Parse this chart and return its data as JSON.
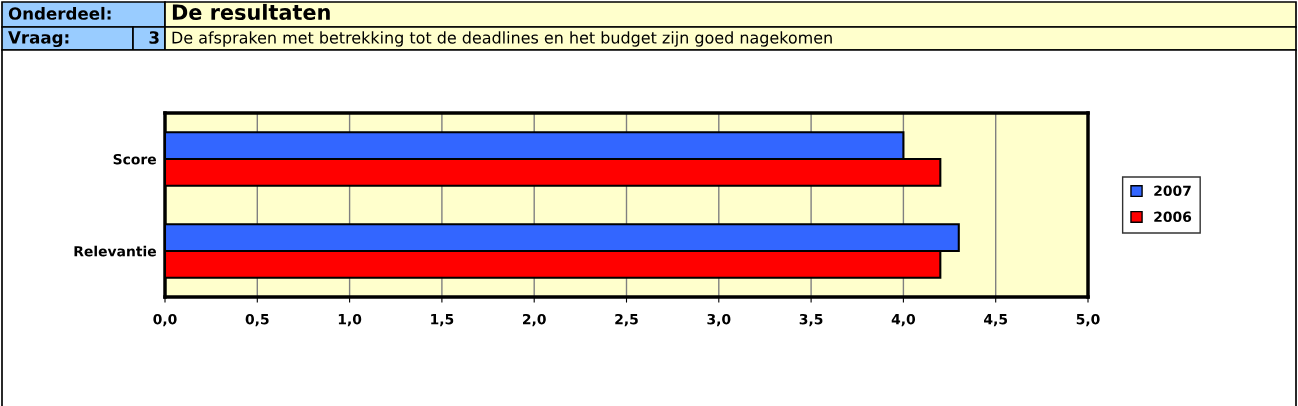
{
  "chart_data": {
    "type": "bar",
    "orientation": "horizontal",
    "title": "De resultaten",
    "subtitle": "De afspraken met betrekking tot de deadlines en het budget zijn goed nagekomen",
    "annotations": [
      "Onderdeel:",
      "Vraag:",
      "3"
    ],
    "categories": [
      "Score",
      "Relevantie"
    ],
    "series": [
      {
        "name": "2007",
        "color": "#3366ff",
        "values": [
          4.0,
          4.3
        ]
      },
      {
        "name": "2006",
        "color": "#ff0000",
        "values": [
          4.2,
          4.2
        ]
      }
    ],
    "xlim": [
      0,
      5
    ],
    "xticks": [
      {
        "value": 0,
        "label": "0,0"
      },
      {
        "value": 0.5,
        "label": "0,5"
      },
      {
        "value": 1,
        "label": "1,0"
      },
      {
        "value": 1.5,
        "label": "1,5"
      },
      {
        "value": 2,
        "label": "2,0"
      },
      {
        "value": 2.5,
        "label": "2,5"
      },
      {
        "value": 3,
        "label": "3,0"
      },
      {
        "value": 3.5,
        "label": "3,5"
      },
      {
        "value": 4,
        "label": "4,0"
      },
      {
        "value": 4.5,
        "label": "4,5"
      },
      {
        "value": 5,
        "label": "5,0"
      }
    ],
    "grid": "x",
    "legend": "right"
  }
}
